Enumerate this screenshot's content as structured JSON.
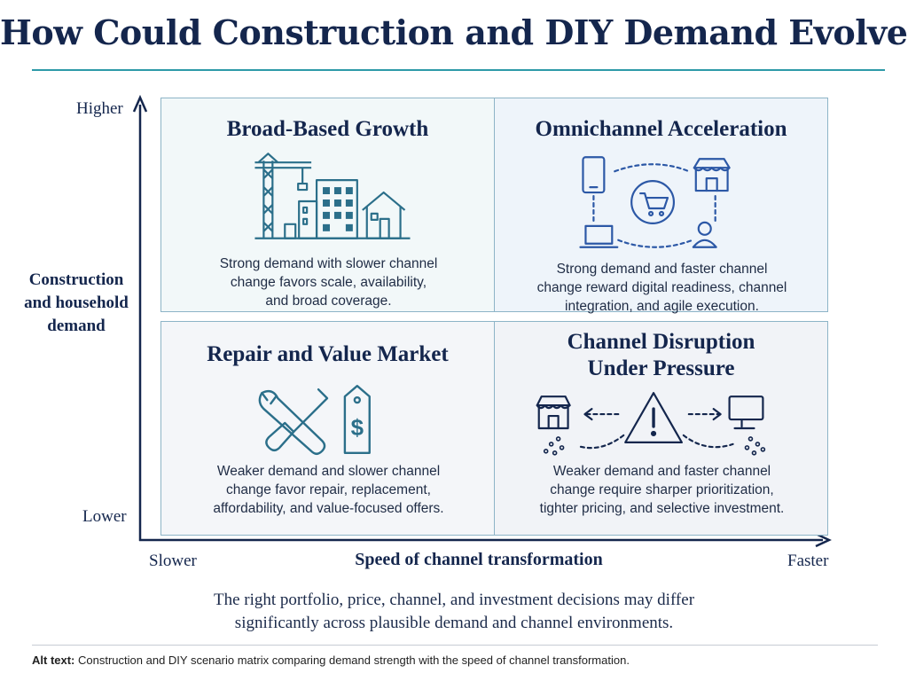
{
  "title": "How Could Construction and DIY Demand Evolve?",
  "y_axis": {
    "high": "Higher",
    "low": "Lower",
    "title_lines": [
      "Construction",
      "and household",
      "demand"
    ]
  },
  "x_axis": {
    "low": "Slower",
    "high": "Faster",
    "title": "Speed of channel transformation"
  },
  "quadrants": {
    "top_left": {
      "title": "Broad-Based Growth",
      "text_lines": [
        "Strong demand with slower channel",
        "change favors scale, availability,",
        "and broad coverage."
      ],
      "icon": "construction-city-icon"
    },
    "top_right": {
      "title": "Omnichannel Acceleration",
      "text_lines": [
        "Strong demand and faster channel",
        "change reward digital readiness, channel",
        "integration, and agile execution."
      ],
      "icon": "omnichannel-network-icon"
    },
    "bottom_left": {
      "title": "Repair and Value Market",
      "text_lines": [
        "Weaker demand and slower channel",
        "change favor repair, replacement,",
        "affordability, and value-focused offers."
      ],
      "icon": "tools-price-tag-icon"
    },
    "bottom_right": {
      "title_lines": [
        "Channel Disruption",
        "Under Pressure"
      ],
      "text_lines": [
        "Weaker demand and faster channel",
        "change require sharper prioritization,",
        "tighter pricing, and selective investment."
      ],
      "icon": "disruption-warning-icon"
    }
  },
  "footer": {
    "lines": [
      "The right portfolio, price, channel, and investment decisions may differ",
      "significantly across plausible demand and channel environments."
    ]
  },
  "alt_text": {
    "label": "Alt text:",
    "text": "Construction and DIY scenario matrix comparing demand strength with the speed of channel transformation."
  },
  "colors": {
    "navy": "#14264d",
    "teal_rule": "#2d9aa8",
    "icon_teal": "#2b6f8a",
    "icon_blue": "#2c58a6"
  }
}
